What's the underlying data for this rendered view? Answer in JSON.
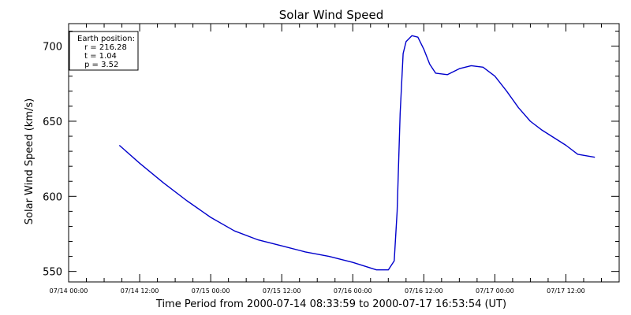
{
  "chart_data": {
    "type": "line",
    "title": "Solar Wind Speed",
    "ylabel": "Solar Wind Speed (km/s)",
    "xlabel": "Time Period from 2000-07-14 08:33:59 to 2000-07-17 16:53:54 (UT)",
    "xlim": [
      "2000-07-14 00:00",
      "2000-07-17 21:00"
    ],
    "ylim": [
      543,
      715
    ],
    "x_ticks": [
      {
        "x": "2000-07-14 00:00",
        "label": "07/14 00:00"
      },
      {
        "x": "2000-07-14 12:00",
        "label": "07/14 12:00"
      },
      {
        "x": "2000-07-15 00:00",
        "label": "07/15 00:00"
      },
      {
        "x": "2000-07-15 12:00",
        "label": "07/15 12:00"
      },
      {
        "x": "2000-07-16 00:00",
        "label": "07/16 00:00"
      },
      {
        "x": "2000-07-16 12:00",
        "label": "07/16 12:00"
      },
      {
        "x": "2000-07-17 00:00",
        "label": "07/17 00:00"
      },
      {
        "x": "2000-07-17 12:00",
        "label": "07/17 12:00"
      }
    ],
    "y_ticks": [
      550,
      600,
      650,
      700
    ],
    "y_minor_step": 10,
    "grid": false,
    "legend_position": "top-left",
    "legend_lines": [
      "Earth position:",
      "r = 216.28",
      "t = 1.04",
      "p = 3.52"
    ],
    "line_color": "#0000cc",
    "series": [
      {
        "x": [
          "2000-07-14 08:34",
          "2000-07-14 12:00",
          "2000-07-14 16:00",
          "2000-07-14 20:00",
          "2000-07-15 00:00",
          "2000-07-15 04:00",
          "2000-07-15 08:00",
          "2000-07-15 12:00",
          "2000-07-15 16:00",
          "2000-07-15 20:00",
          "2000-07-16 00:00",
          "2000-07-16 04:00",
          "2000-07-16 06:00",
          "2000-07-16 07:00",
          "2000-07-16 07:30",
          "2000-07-16 08:00",
          "2000-07-16 08:30",
          "2000-07-16 09:00",
          "2000-07-16 10:00",
          "2000-07-16 11:00",
          "2000-07-16 12:00",
          "2000-07-16 13:00",
          "2000-07-16 14:00",
          "2000-07-16 16:00",
          "2000-07-16 18:00",
          "2000-07-16 20:00",
          "2000-07-16 22:00",
          "2000-07-17 00:00",
          "2000-07-17 02:00",
          "2000-07-17 04:00",
          "2000-07-17 06:00",
          "2000-07-17 08:00",
          "2000-07-17 12:00",
          "2000-07-17 14:00",
          "2000-07-17 16:54"
        ],
        "y": [
          634,
          622,
          609,
          597,
          586,
          577,
          571,
          567,
          563,
          560,
          556,
          551,
          551,
          557,
          590,
          655,
          695,
          703,
          707,
          706,
          698,
          688,
          682,
          681,
          685,
          687,
          686,
          680,
          670,
          659,
          650,
          644,
          634,
          628,
          626
        ]
      }
    ]
  }
}
